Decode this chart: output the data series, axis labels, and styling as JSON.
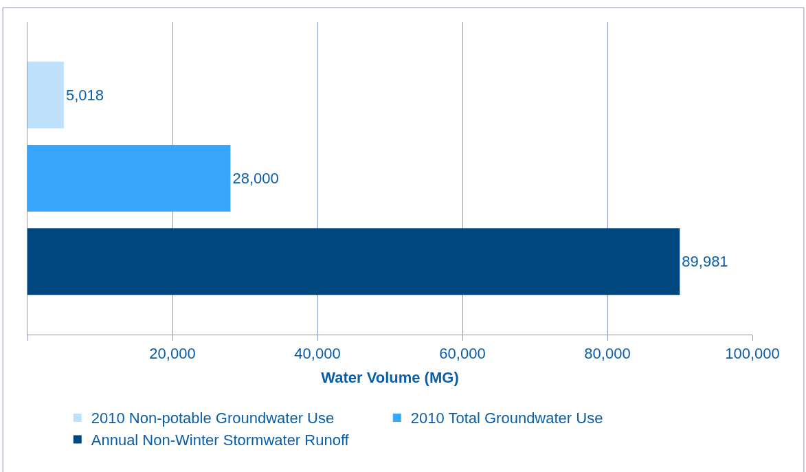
{
  "chart_data": {
    "type": "bar",
    "orientation": "horizontal",
    "xlabel": "Water Volume (MG)",
    "categories": [
      null
    ],
    "series": [
      {
        "name": "2010 Non-potable Groundwater Use",
        "color": "#bfe1fc",
        "values": [
          5018
        ],
        "value_labels": [
          "5,018"
        ]
      },
      {
        "name": "2010 Total Groundwater Use",
        "color": "#38a6fd",
        "values": [
          28000
        ],
        "value_labels": [
          "28,000"
        ]
      },
      {
        "name": "Annual Non-Winter Stormwater Runoff",
        "color": "#00467f",
        "values": [
          89981
        ],
        "value_labels": [
          "89,981"
        ]
      }
    ],
    "xlim": [
      0,
      100000
    ],
    "xticks": [
      {
        "value": 0,
        "label": null
      },
      {
        "value": 20000,
        "label": "20,000"
      },
      {
        "value": 40000,
        "label": "40,000"
      },
      {
        "value": 60000,
        "label": "60,000"
      },
      {
        "value": 80000,
        "label": "80,000"
      },
      {
        "value": 100000,
        "label": "100,000"
      }
    ],
    "grid": "x",
    "legend": "bottom"
  }
}
